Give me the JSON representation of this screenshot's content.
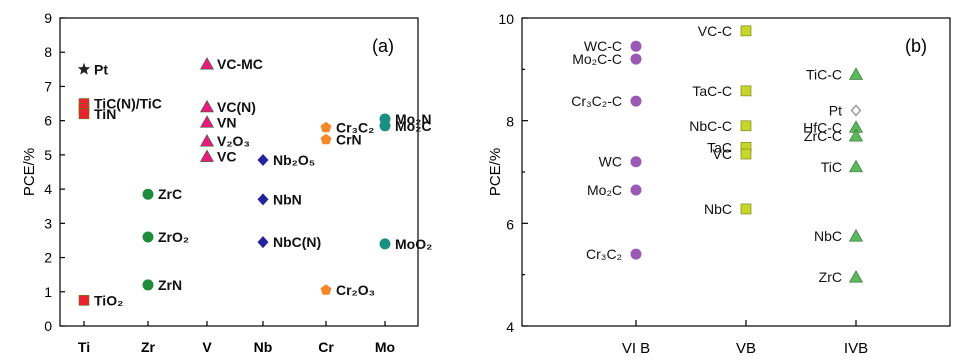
{
  "chart_data": [
    {
      "type": "scatter",
      "panel_label": "(a)",
      "ylabel": "PCE/%",
      "xlabel": "",
      "ylim": [
        0,
        9
      ],
      "yticks": [
        0,
        1,
        2,
        3,
        4,
        5,
        6,
        7,
        8,
        9
      ],
      "categories": [
        "Ti",
        "Zr",
        "V",
        "Nb",
        "Cr",
        "Mo"
      ],
      "grid": false,
      "colors": {
        "Ti": "#e8232f",
        "Zr": "#1e8c3c",
        "V": "#e8197f",
        "Nb": "#23239b",
        "Cr": "#f5892a",
        "Mo": "#1a8f83",
        "Pt": "#222222"
      },
      "points": [
        {
          "label": "Pt",
          "category": "Ti",
          "y": 7.5,
          "marker": "star",
          "color_key": "Pt"
        },
        {
          "label": "TiC(N)/TiC",
          "category": "Ti",
          "y": 6.5,
          "marker": "square",
          "color_key": "Ti"
        },
        {
          "label": "",
          "category": "Ti",
          "y": 6.35,
          "marker": "square",
          "color_key": "Ti"
        },
        {
          "label": "TiN",
          "category": "Ti",
          "y": 6.2,
          "marker": "square",
          "color_key": "Ti"
        },
        {
          "label": "TiO₂",
          "category": "Ti",
          "y": 0.75,
          "marker": "square",
          "color_key": "Ti"
        },
        {
          "label": "ZrC",
          "category": "Zr",
          "y": 3.85,
          "marker": "circle",
          "color_key": "Zr"
        },
        {
          "label": "ZrO₂",
          "category": "Zr",
          "y": 2.6,
          "marker": "circle",
          "color_key": "Zr"
        },
        {
          "label": "ZrN",
          "category": "Zr",
          "y": 1.2,
          "marker": "circle",
          "color_key": "Zr"
        },
        {
          "label": "VC-MC",
          "category": "V",
          "y": 7.65,
          "marker": "triangle",
          "color_key": "V"
        },
        {
          "label": "VC(N)",
          "category": "V",
          "y": 6.4,
          "marker": "triangle",
          "color_key": "V"
        },
        {
          "label": "VN",
          "category": "V",
          "y": 5.95,
          "marker": "triangle",
          "color_key": "V"
        },
        {
          "label": "V₂O₃",
          "category": "V",
          "y": 5.4,
          "marker": "triangle",
          "color_key": "V"
        },
        {
          "label": "VC",
          "category": "V",
          "y": 4.95,
          "marker": "triangle",
          "color_key": "V"
        },
        {
          "label": "Nb₂O₅",
          "category": "Nb",
          "y": 4.85,
          "marker": "diamond",
          "color_key": "Nb"
        },
        {
          "label": "NbN",
          "category": "Nb",
          "y": 3.7,
          "marker": "diamond",
          "color_key": "Nb"
        },
        {
          "label": "NbC(N)",
          "category": "Nb",
          "y": 2.45,
          "marker": "diamond",
          "color_key": "Nb"
        },
        {
          "label": "Cr₃C₂",
          "category": "Cr",
          "y": 5.8,
          "marker": "pentagon",
          "color_key": "Cr"
        },
        {
          "label": "CrN",
          "category": "Cr",
          "y": 5.45,
          "marker": "pentagon",
          "color_key": "Cr"
        },
        {
          "label": "Cr₂O₃",
          "category": "Cr",
          "y": 1.05,
          "marker": "pentagon",
          "color_key": "Cr"
        },
        {
          "label": "Mo₂N",
          "category": "Mo",
          "y": 6.05,
          "marker": "circle",
          "color_key": "Mo"
        },
        {
          "label": "Mo₂C",
          "category": "Mo",
          "y": 5.85,
          "marker": "circle",
          "color_key": "Mo"
        },
        {
          "label": "MoO₂",
          "category": "Mo",
          "y": 2.4,
          "marker": "circle",
          "color_key": "Mo"
        }
      ]
    },
    {
      "type": "scatter",
      "panel_label": "(b)",
      "ylabel": "PCE/%",
      "xlabel": "",
      "ylim": [
        4,
        10
      ],
      "yticks": [
        4,
        6,
        8,
        10
      ],
      "categories": [
        "VI B",
        "VB",
        "IVB"
      ],
      "grid": false,
      "colors": {
        "VI B": "#9b59b6",
        "VB": "#c8d62a",
        "IVB": "#5cb85c",
        "Pt": "#999999"
      },
      "points": [
        {
          "label": "WC-C",
          "category": "VI B",
          "y": 9.45,
          "marker": "circle",
          "color_key": "VI B"
        },
        {
          "label": "Mo₂C-C",
          "category": "VI B",
          "y": 9.2,
          "marker": "circle",
          "color_key": "VI B"
        },
        {
          "label": "Cr₃C₂-C",
          "category": "VI B",
          "y": 8.38,
          "marker": "circle",
          "color_key": "VI B"
        },
        {
          "label": "WC",
          "category": "VI B",
          "y": 7.2,
          "marker": "circle",
          "color_key": "VI B"
        },
        {
          "label": "Mo₂C",
          "category": "VI B",
          "y": 6.65,
          "marker": "circle",
          "color_key": "VI B"
        },
        {
          "label": "Cr₃C₂",
          "category": "VI B",
          "y": 5.4,
          "marker": "circle",
          "color_key": "VI B"
        },
        {
          "label": "VC-C",
          "category": "VB",
          "y": 9.75,
          "marker": "square",
          "color_key": "VB"
        },
        {
          "label": "TaC-C",
          "category": "VB",
          "y": 8.58,
          "marker": "square",
          "color_key": "VB"
        },
        {
          "label": "NbC-C",
          "category": "VB",
          "y": 7.9,
          "marker": "square",
          "color_key": "VB"
        },
        {
          "label": "TaC",
          "category": "VB",
          "y": 7.48,
          "marker": "square",
          "color_key": "VB"
        },
        {
          "label": "VC",
          "category": "VB",
          "y": 7.35,
          "marker": "square",
          "color_key": "VB"
        },
        {
          "label": "NbC",
          "category": "VB",
          "y": 6.28,
          "marker": "square",
          "color_key": "VB"
        },
        {
          "label": "TiC-C",
          "category": "IVB",
          "y": 8.9,
          "marker": "triangle",
          "color_key": "IVB"
        },
        {
          "label": "Pt",
          "category": "IVB",
          "y": 8.2,
          "marker": "diamond-open",
          "color_key": "Pt"
        },
        {
          "label": "HfC-C",
          "category": "IVB",
          "y": 7.87,
          "marker": "triangle",
          "color_key": "IVB"
        },
        {
          "label": "ZrC-C",
          "category": "IVB",
          "y": 7.7,
          "marker": "triangle",
          "color_key": "IVB"
        },
        {
          "label": "TiC",
          "category": "IVB",
          "y": 7.1,
          "marker": "triangle",
          "color_key": "IVB"
        },
        {
          "label": "NbC",
          "category": "IVB",
          "y": 5.75,
          "marker": "triangle",
          "color_key": "IVB"
        },
        {
          "label": "ZrC",
          "category": "IVB",
          "y": 4.95,
          "marker": "triangle",
          "color_key": "IVB"
        }
      ]
    }
  ]
}
